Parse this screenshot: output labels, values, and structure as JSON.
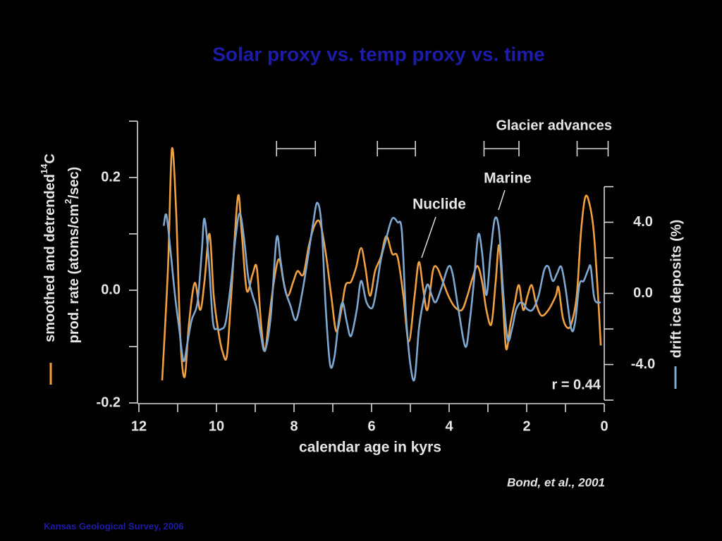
{
  "title": "Solar proxy vs. temp proxy vs. time",
  "footer": "Kansas Geological Survey, 2006",
  "chart_data": {
    "type": "line",
    "xlabel": "calendar age in kyrs",
    "ylabel": {
      "line1": [
        "smoothed and detrended",
        "14",
        "C"
      ],
      "line2": [
        "prod. rate (atoms/cm",
        "2",
        "/sec)"
      ]
    },
    "y2label": "drift ice deposits (%)",
    "xlim": [
      12,
      0
    ],
    "xticks": [
      12,
      10,
      8,
      6,
      4,
      2,
      0
    ],
    "xminor": [
      11,
      9,
      7,
      5,
      3,
      1
    ],
    "ylim": [
      -0.2,
      0.3
    ],
    "yticks": [
      -0.2,
      {
        "value": 0,
        "label": "0.0"
      },
      0.2
    ],
    "yminor": [
      -0.1,
      0.1,
      0.3
    ],
    "y2lim": [
      -6,
      6
    ],
    "y2ticks": [
      {
        "value": -4,
        "label": "-4.0"
      },
      {
        "value": 0,
        "label": "0.0"
      },
      {
        "value": 4,
        "label": "4.0"
      }
    ],
    "y2minor": [
      -6,
      -2,
      2,
      6
    ],
    "annotations": {
      "correlation": "r = 0.44",
      "source": "Bond, et al., 2001"
    },
    "glacier_advances": {
      "label": "Glacier advances",
      "intervals": [
        [
          8.45,
          7.45
        ],
        [
          5.85,
          4.87
        ],
        [
          3.1,
          2.2
        ],
        [
          0.7,
          -0.1
        ]
      ]
    },
    "series": [
      {
        "name": "Nuclide",
        "color": "#f0a040",
        "axis": "y",
        "x": [
          11.4,
          11.25,
          11.15,
          11.04,
          10.93,
          10.82,
          10.71,
          10.56,
          10.42,
          10.31,
          10.18,
          10.07,
          9.95,
          9.84,
          9.73,
          9.62,
          9.45,
          9.35,
          9.22,
          9.07,
          8.96,
          8.85,
          8.75,
          8.64,
          8.49,
          8.38,
          8.27,
          8.16,
          8.02,
          7.91,
          7.76,
          7.62,
          7.47,
          7.33,
          7.18,
          7.04,
          6.91,
          6.78,
          6.67,
          6.53,
          6.4,
          6.27,
          6.16,
          6.04,
          5.91,
          5.76,
          5.62,
          5.47,
          5.33,
          5.18,
          5.04,
          4.89,
          4.78,
          4.67,
          4.56,
          4.42,
          4.31,
          4.16,
          4.02,
          3.85,
          3.67,
          3.53,
          3.4,
          3.27,
          3.15,
          3.04,
          2.91,
          2.8,
          2.71,
          2.62,
          2.53,
          2.42,
          2.31,
          2.2,
          2.09,
          1.98,
          1.87,
          1.76,
          1.62,
          1.44,
          1.25,
          1.18,
          1.07,
          0.96,
          0.85,
          0.71,
          0.6,
          0.49,
          0.38,
          0.27,
          0.16,
          0.09
        ],
        "values": [
          -0.16,
          0.04,
          0.25,
          0.14,
          -0.085,
          -0.154,
          -0.06,
          0.013,
          -0.035,
          0.015,
          0.1,
          -0.01,
          -0.073,
          -0.11,
          -0.116,
          -0.01,
          0.165,
          0.103,
          0,
          0.028,
          0.04,
          -0.06,
          -0.108,
          -0.048,
          0.028,
          0.055,
          0.015,
          -0.01,
          0.015,
          0.034,
          0.028,
          0.078,
          0.115,
          0.12,
          0.065,
          -0.01,
          -0.073,
          -0.035,
          0.009,
          0.015,
          0.04,
          0.075,
          0.04,
          -0.01,
          0.034,
          0.059,
          0.096,
          0.065,
          0.059,
          -0.01,
          -0.091,
          -0.01,
          0.05,
          0.003,
          -0.035,
          0.034,
          0.04,
          0.015,
          -0.01,
          -0.03,
          -0.035,
          -0.01,
          0.021,
          0.043,
          0.015,
          -0.035,
          -0.06,
          0.015,
          0.08,
          -0.01,
          -0.104,
          -0.06,
          -0.023,
          0.009,
          -0.035,
          -0.01,
          0.009,
          -0.023,
          -0.045,
          -0.035,
          -0.01,
          0.005,
          -0.048,
          -0.066,
          -0.06,
          -0.01,
          0.103,
          0.165,
          0.153,
          0.103,
          -0.01,
          -0.098
        ]
      },
      {
        "name": "Marine",
        "color": "#7fa8d0",
        "axis": "y2",
        "x": [
          11.36,
          11.29,
          11.18,
          11.07,
          10.96,
          10.85,
          10.75,
          10.64,
          10.49,
          10.38,
          10.31,
          10.2,
          10.09,
          9.98,
          9.87,
          9.76,
          9.62,
          9.51,
          9.4,
          9.29,
          9.18,
          9.07,
          8.96,
          8.85,
          8.75,
          8.6,
          8.45,
          8.35,
          8.24,
          8.09,
          7.95,
          7.8,
          7.65,
          7.51,
          7.4,
          7.29,
          7.18,
          7.07,
          6.96,
          6.85,
          6.75,
          6.64,
          6.53,
          6.38,
          6.27,
          6.13,
          5.98,
          5.87,
          5.76,
          5.62,
          5.47,
          5.33,
          5.22,
          5.11,
          5.0,
          4.89,
          4.78,
          4.67,
          4.56,
          4.45,
          4.35,
          4.2,
          4.02,
          3.91,
          3.76,
          3.58,
          3.47,
          3.36,
          3.25,
          3.15,
          3.04,
          2.93,
          2.82,
          2.71,
          2.6,
          2.49,
          2.38,
          2.27,
          2.13,
          1.98,
          1.84,
          1.69,
          1.55,
          1.44,
          1.33,
          1.22,
          1.11,
          1.0,
          0.85,
          0.75,
          0.64,
          0.53,
          0.42,
          0.35,
          0.27,
          0.2,
          0.09
        ],
        "values": [
          3.8,
          4.4,
          2.3,
          -0.1,
          -2.0,
          -3.8,
          -2.8,
          -1.5,
          -0.5,
          2.3,
          4.2,
          1.9,
          -1.6,
          -2.0,
          -2.0,
          -1.6,
          0.7,
          3.1,
          4.5,
          3.1,
          0.9,
          -0.1,
          -0.9,
          -2.4,
          -3.2,
          -1.3,
          3.1,
          1.9,
          0.3,
          -0.7,
          -1.5,
          -0.1,
          1.9,
          3.9,
          5.1,
          3.8,
          -0.9,
          -4.0,
          -3.6,
          -1.6,
          -0.5,
          -1.6,
          -2.4,
          -0.9,
          0.7,
          -0.5,
          -0.8,
          0.3,
          1.9,
          3.1,
          4.2,
          4.0,
          3.5,
          -1.3,
          -4.0,
          -4.8,
          -2.0,
          -0.5,
          0.5,
          -0.1,
          -0.5,
          0.3,
          1.5,
          1.1,
          -0.9,
          -3.0,
          -1.6,
          0.7,
          3.3,
          2.3,
          -0.1,
          2.3,
          4.2,
          3.5,
          -0.1,
          -2.6,
          -2.0,
          -0.9,
          -0.5,
          -0.9,
          -0.9,
          -0.1,
          1.3,
          1.5,
          0.7,
          1.1,
          1.5,
          0.3,
          -2.0,
          -1.6,
          0.5,
          0.7,
          1.3,
          1.5,
          -0.1,
          -0.5,
          -0.5
        ]
      }
    ]
  }
}
